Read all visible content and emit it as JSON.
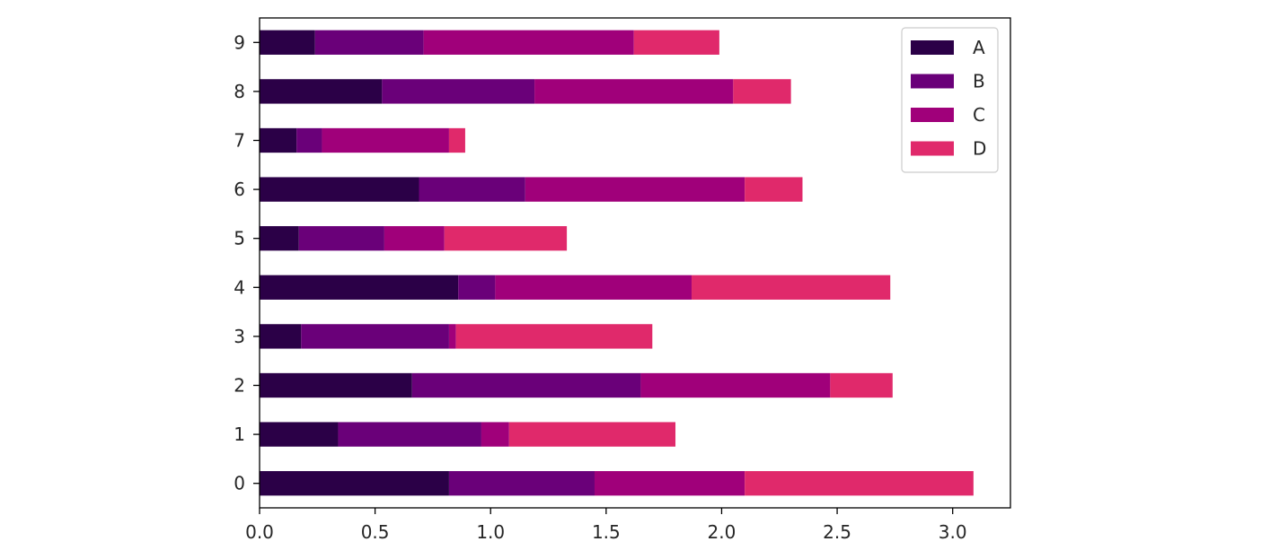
{
  "chart_data": {
    "type": "bar",
    "orientation": "horizontal",
    "stacked": true,
    "title": "",
    "xlabel": "",
    "ylabel": "",
    "categories": [
      "0",
      "1",
      "2",
      "3",
      "4",
      "5",
      "6",
      "7",
      "8",
      "9"
    ],
    "series": [
      {
        "name": "A",
        "color": "#2b0047",
        "values": [
          0.82,
          0.34,
          0.66,
          0.18,
          0.86,
          0.17,
          0.69,
          0.16,
          0.53,
          0.24
        ]
      },
      {
        "name": "B",
        "color": "#6a0079",
        "values": [
          0.63,
          0.62,
          0.99,
          0.64,
          0.16,
          0.37,
          0.46,
          0.11,
          0.66,
          0.47
        ]
      },
      {
        "name": "C",
        "color": "#a0007a",
        "values": [
          0.65,
          0.12,
          0.82,
          0.03,
          0.85,
          0.26,
          0.95,
          0.55,
          0.86,
          0.91
        ]
      },
      {
        "name": "D",
        "color": "#e0296b",
        "values": [
          0.99,
          0.72,
          0.27,
          0.85,
          0.86,
          0.53,
          0.25,
          0.07,
          0.25,
          0.37
        ]
      }
    ],
    "xlim": [
      0,
      3.25
    ],
    "xticks": [
      0.0,
      0.5,
      1.0,
      1.5,
      2.0,
      2.5,
      3.0
    ],
    "xtick_labels": [
      "0.0",
      "0.5",
      "1.0",
      "1.5",
      "2.0",
      "2.5",
      "3.0"
    ],
    "grid": false,
    "legend_position": "top-right"
  }
}
